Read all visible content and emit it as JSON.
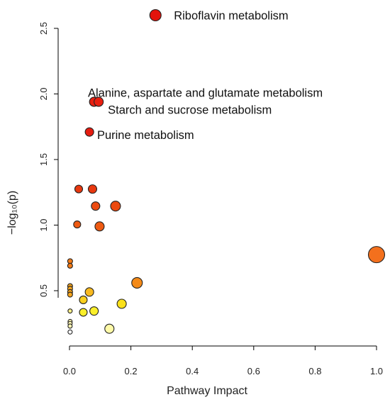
{
  "chart_data": {
    "type": "scatter",
    "title": "",
    "xlabel": "Pathway Impact",
    "ylabel": "−log₁₀(p)",
    "xlim": [
      0,
      1
    ],
    "ylim": [
      0.15,
      2.6
    ],
    "xticks": [
      0.0,
      0.2,
      0.4,
      0.6,
      0.8,
      1.0
    ],
    "xtick_labels": [
      "0.0",
      "0.2",
      "0.4",
      "0.6",
      "0.8",
      "1.0"
    ],
    "yticks": [
      0.5,
      1.0,
      1.5,
      2.0,
      2.5
    ],
    "ytick_labels": [
      "0.5",
      "1.0",
      "1.5",
      "2.0",
      "2.5"
    ],
    "grid": false,
    "points": [
      {
        "x": 0.28,
        "y": 2.6,
        "r": 8,
        "color": "#e3140c"
      },
      {
        "x": 0.08,
        "y": 1.94,
        "r": 6.5,
        "color": "#e81f10"
      },
      {
        "x": 0.095,
        "y": 1.94,
        "r": 6.5,
        "color": "#e81f10"
      },
      {
        "x": 0.065,
        "y": 1.71,
        "r": 6,
        "color": "#e51c10"
      },
      {
        "x": 0.03,
        "y": 1.275,
        "r": 5.5,
        "color": "#e8380f"
      },
      {
        "x": 0.075,
        "y": 1.275,
        "r": 6,
        "color": "#e8380f"
      },
      {
        "x": 0.085,
        "y": 1.145,
        "r": 6,
        "color": "#ec4a10"
      },
      {
        "x": 0.15,
        "y": 1.145,
        "r": 7,
        "color": "#ec4a10"
      },
      {
        "x": 0.025,
        "y": 1.005,
        "r": 5,
        "color": "#ee5a12"
      },
      {
        "x": 0.098,
        "y": 0.99,
        "r": 6.5,
        "color": "#ee5a12"
      },
      {
        "x": 1.0,
        "y": 0.775,
        "r": 11.5,
        "color": "#f3701d"
      },
      {
        "x": 0.002,
        "y": 0.725,
        "r": 3.5,
        "color": "#f27a16"
      },
      {
        "x": 0.002,
        "y": 0.69,
        "r": 3.5,
        "color": "#f27a16"
      },
      {
        "x": 0.22,
        "y": 0.56,
        "r": 7.5,
        "color": "#f48a18"
      },
      {
        "x": 0.002,
        "y": 0.535,
        "r": 3.5,
        "color": "#f6a51d"
      },
      {
        "x": 0.002,
        "y": 0.515,
        "r": 3.5,
        "color": "#f6a51d"
      },
      {
        "x": 0.002,
        "y": 0.49,
        "r": 3.5,
        "color": "#f6a51d"
      },
      {
        "x": 0.002,
        "y": 0.47,
        "r": 3.5,
        "color": "#f6a51d"
      },
      {
        "x": 0.065,
        "y": 0.49,
        "r": 6,
        "color": "#f8b91f"
      },
      {
        "x": 0.045,
        "y": 0.43,
        "r": 5.5,
        "color": "#f9cf1e"
      },
      {
        "x": 0.17,
        "y": 0.4,
        "r": 6.5,
        "color": "#fbe11a"
      },
      {
        "x": 0.002,
        "y": 0.345,
        "r": 3,
        "color": "#fdf08a"
      },
      {
        "x": 0.045,
        "y": 0.335,
        "r": 5.5,
        "color": "#fbef2a"
      },
      {
        "x": 0.08,
        "y": 0.345,
        "r": 6,
        "color": "#fbef2a"
      },
      {
        "x": 0.002,
        "y": 0.265,
        "r": 3,
        "color": "#fff8b4"
      },
      {
        "x": 0.002,
        "y": 0.25,
        "r": 3,
        "color": "#fff8b4"
      },
      {
        "x": 0.002,
        "y": 0.23,
        "r": 3,
        "color": "#fff8b4"
      },
      {
        "x": 0.13,
        "y": 0.21,
        "r": 6.5,
        "color": "#fffaa8"
      },
      {
        "x": 0.002,
        "y": 0.185,
        "r": 3,
        "color": "#ffffff"
      }
    ],
    "annotations": [
      {
        "text": "Riboflavin metabolism",
        "x": 0.34,
        "y": 2.6,
        "anchor": "start"
      },
      {
        "text": "Alanine, aspartate and glutamate metabolism",
        "x": 0.06,
        "y": 2.01,
        "anchor": "start"
      },
      {
        "text": "Starch and sucrose metabolism",
        "x": 0.125,
        "y": 1.88,
        "anchor": "start"
      },
      {
        "text": "Purine metabolism",
        "x": 0.09,
        "y": 1.69,
        "anchor": "start"
      }
    ]
  }
}
